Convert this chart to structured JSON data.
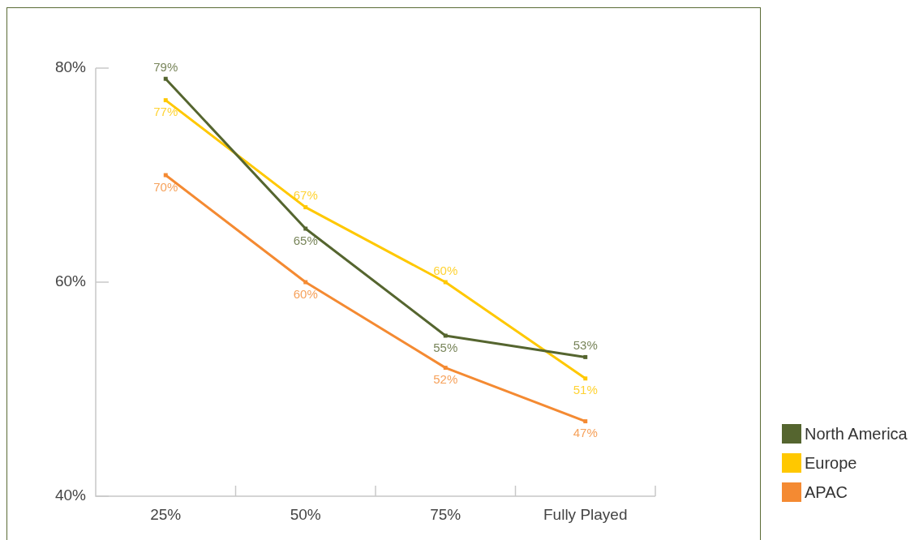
{
  "chart_data": {
    "type": "line",
    "categories": [
      "25%",
      "50%",
      "75%",
      "Fully Played"
    ],
    "series": [
      {
        "name": "North America",
        "color": "#55652f",
        "values": [
          79,
          65,
          55,
          53
        ],
        "value_labels": [
          "79%",
          "65%",
          "55%",
          "53%"
        ]
      },
      {
        "name": "Europe",
        "color": "#ffc800",
        "values": [
          77,
          67,
          60,
          51
        ],
        "value_labels": [
          "77%",
          "67%",
          "60%",
          "51%"
        ]
      },
      {
        "name": "APAC",
        "color": "#f48a32",
        "values": [
          70,
          60,
          52,
          47
        ],
        "value_labels": [
          "70%",
          "60%",
          "52%",
          "47%"
        ]
      }
    ],
    "ylim": [
      40,
      80
    ],
    "yticks": [
      {
        "value": 40,
        "label": "40%"
      },
      {
        "value": 60,
        "label": "60%"
      },
      {
        "value": 80,
        "label": "80%"
      }
    ],
    "grid": false,
    "legend": "bottom right",
    "marker": "square",
    "line_style": "solid"
  }
}
